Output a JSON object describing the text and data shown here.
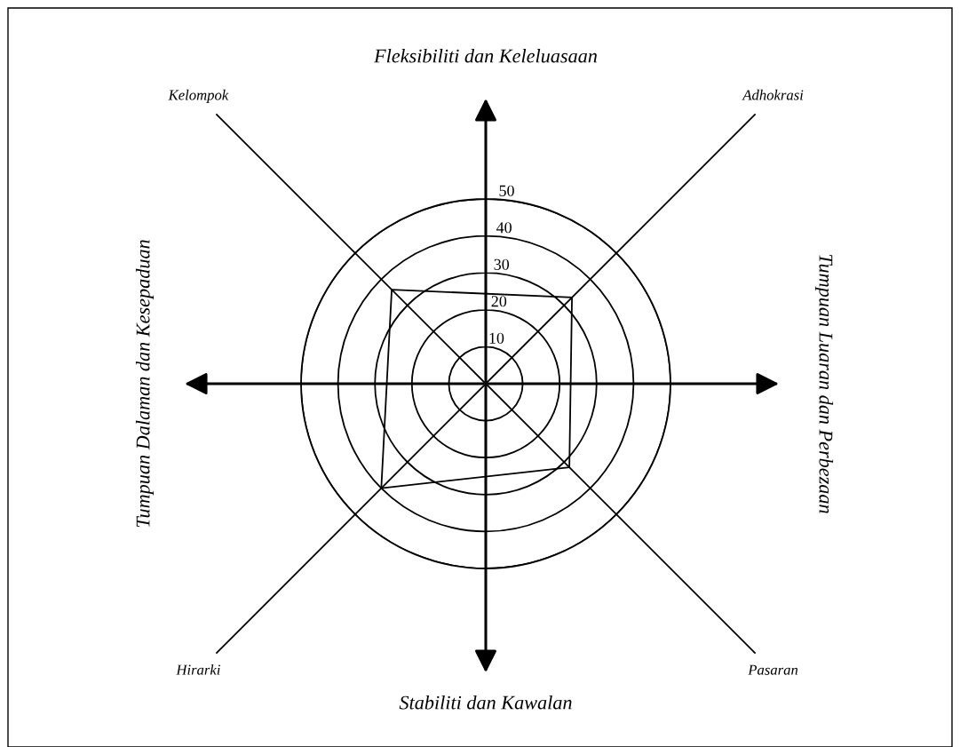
{
  "chart_data": {
    "type": "radar",
    "categories": [
      "Adhokrasi",
      "Pasaran",
      "Hirarki",
      "Kelompok"
    ],
    "series": [
      {
        "color": "#000000",
        "values": [
          33,
          32,
          40,
          36
        ]
      }
    ],
    "ylim": [
      0,
      50
    ],
    "yticks": [
      10,
      20,
      30,
      40,
      50
    ],
    "grid": true,
    "annotations": [
      "Fleksibiliti dan Keleluasaan",
      "Tumpuan Luaran dan Perbezaan",
      "Stabiliti dan Kawalan",
      "Tumpuan Dalaman dan Kesepaduan"
    ]
  }
}
